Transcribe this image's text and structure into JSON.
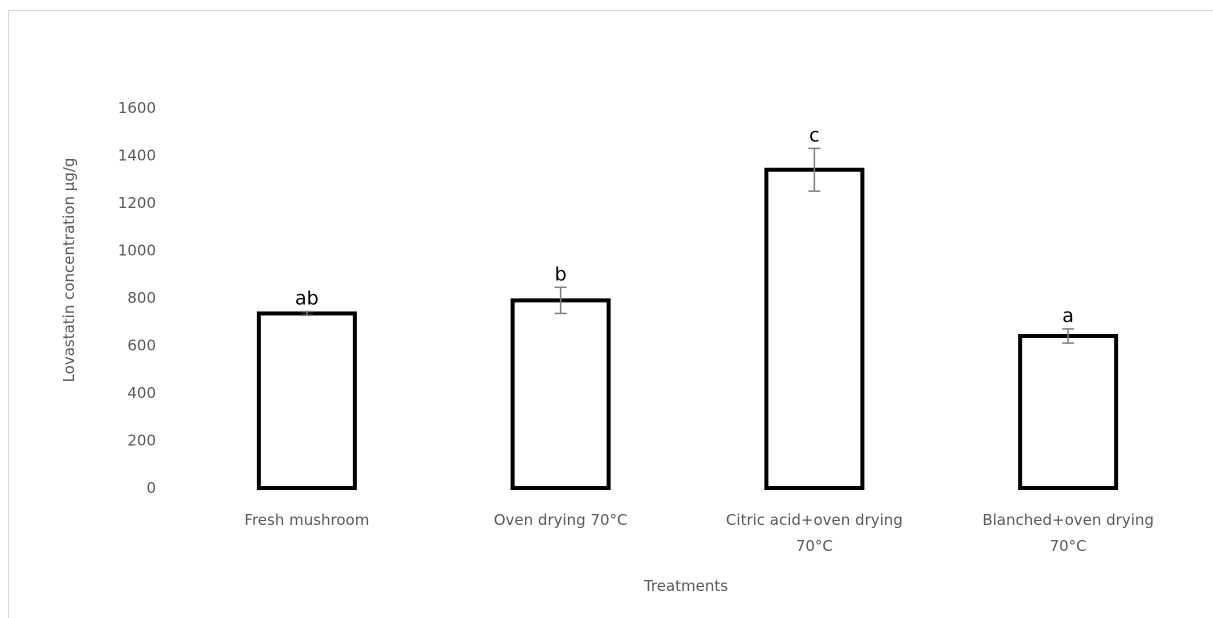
{
  "chart_data": {
    "type": "bar",
    "categories": [
      [
        "Fresh mushroom"
      ],
      [
        "Oven drying 70°C"
      ],
      [
        "Citric acid+oven drying",
        "70°C"
      ],
      [
        "Blanched+oven drying",
        "70°C"
      ]
    ],
    "values": [
      735,
      790,
      1340,
      640
    ],
    "errors": [
      8,
      55,
      90,
      30
    ],
    "significance_labels": [
      "ab",
      "b",
      "c",
      "a"
    ],
    "xlabel": "Treatments",
    "ylabel": "Lovastatin concentration  µg/g",
    "ylim": [
      0,
      1600
    ],
    "yticks": [
      0,
      200,
      400,
      600,
      800,
      1000,
      1200,
      1400,
      1600
    ],
    "grid": false,
    "legend": "none",
    "colors": {
      "bar_fill": "#ffffff",
      "bar_stroke": "#000000",
      "error_bar": "#7f7f7f",
      "text": "#595959"
    }
  }
}
